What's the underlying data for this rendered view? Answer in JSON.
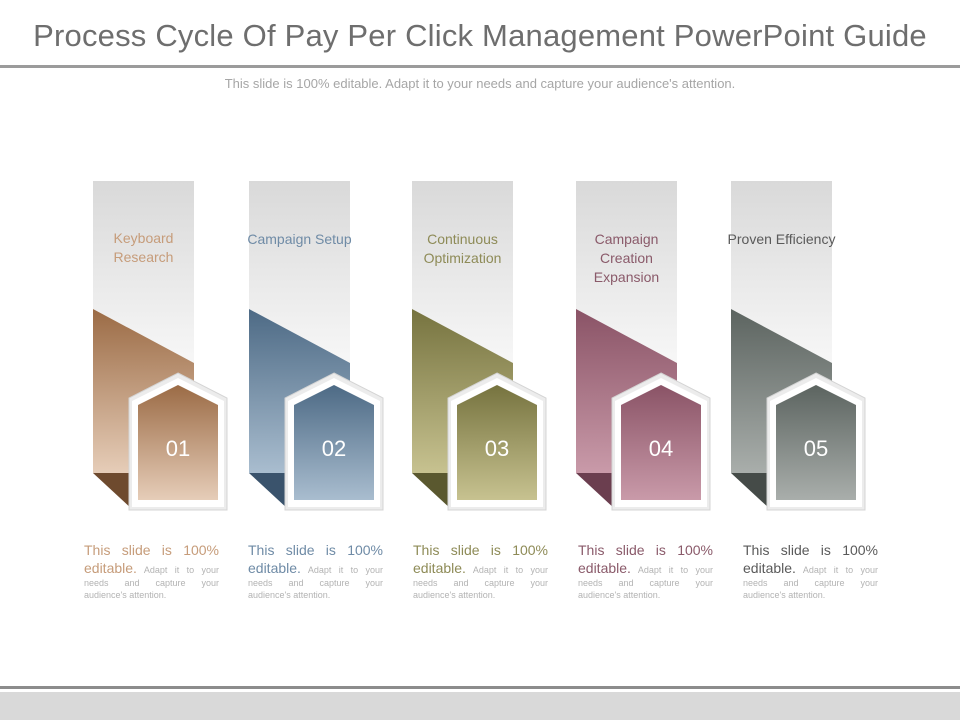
{
  "slide": {
    "title": "Process Cycle Of Pay Per Click Management PowerPoint Guide",
    "subtitle": "This slide is 100% editable. Adapt it to your needs and capture your audience's attention."
  },
  "steps": [
    {
      "number": "01",
      "label": "Keyboard Research",
      "desc_lead": "This slide is 100% editable.",
      "desc_body": "Adapt it to your needs and capture your audience's attention.",
      "color": "#9b6b45",
      "light": "#e6cdb8",
      "fold": "#6e4a2e",
      "text_color": "#c69c7a"
    },
    {
      "number": "02",
      "label": "Campaign Setup",
      "desc_lead": "This slide is 100% editable.",
      "desc_body": "Adapt it to your needs and capture your audience's attention.",
      "color": "#4d6a85",
      "light": "#a9bdcf",
      "fold": "#3a536c",
      "text_color": "#6f8ba6"
    },
    {
      "number": "03",
      "label": "Continuous Optimization",
      "desc_lead": "This slide is 100% editable.",
      "desc_body": "Adapt it to your needs and capture your audience's attention.",
      "color": "#76733f",
      "light": "#c7c290",
      "fold": "#5a582f",
      "text_color": "#8e8b57"
    },
    {
      "number": "04",
      "label": "Campaign Creation Expansion",
      "desc_lead": "This slide is 100% editable.",
      "desc_body": "Adapt it to your needs and capture your audience's attention.",
      "color": "#8a5366",
      "light": "#c99aa9",
      "fold": "#6b3e4f",
      "text_color": "#8a5a6a"
    },
    {
      "number": "05",
      "label": "Proven Efficiency",
      "desc_lead": "This slide is 100% editable.",
      "desc_body": "Adapt it to your needs and capture your audience's attention.",
      "color": "#5c6460",
      "light": "#a9aeab",
      "fold": "#454b48",
      "text_color": "#5a5a5a"
    }
  ]
}
